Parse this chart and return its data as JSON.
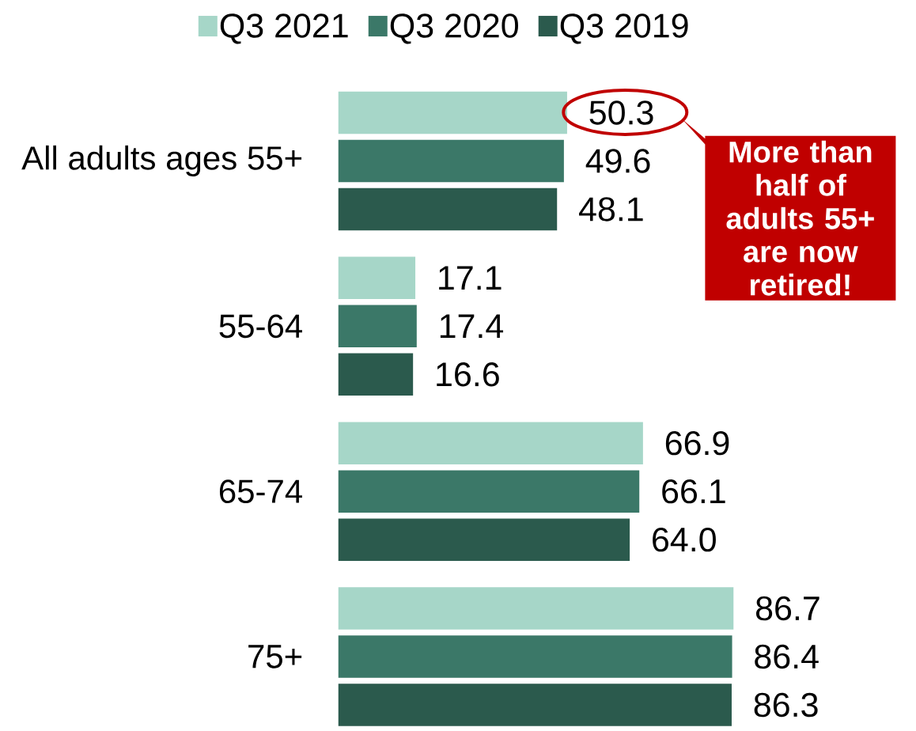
{
  "chart_data": {
    "type": "bar",
    "orientation": "horizontal",
    "categories": [
      "All adults ages 55+",
      "55-64",
      "65-74",
      "75+"
    ],
    "series": [
      {
        "name": "Q3 2021",
        "color": "#a6d6c8",
        "values": [
          50.3,
          17.1,
          66.9,
          86.7
        ],
        "value_labels": [
          "50.3",
          "17.1",
          "66.9",
          "86.7"
        ]
      },
      {
        "name": "Q3 2020",
        "color": "#3b7868",
        "values": [
          49.6,
          17.4,
          66.1,
          86.4
        ],
        "value_labels": [
          "49.6",
          "17.4",
          "66.1",
          "86.4"
        ]
      },
      {
        "name": "Q3 2019",
        "color": "#2b5a4d",
        "values": [
          48.1,
          16.6,
          64.0,
          86.3
        ],
        "value_labels": [
          "48.1",
          "16.6",
          "64.0",
          "86.3"
        ]
      }
    ],
    "legend": "top",
    "annotations": [
      "More than half of adults 55+ are now retired!"
    ]
  }
}
